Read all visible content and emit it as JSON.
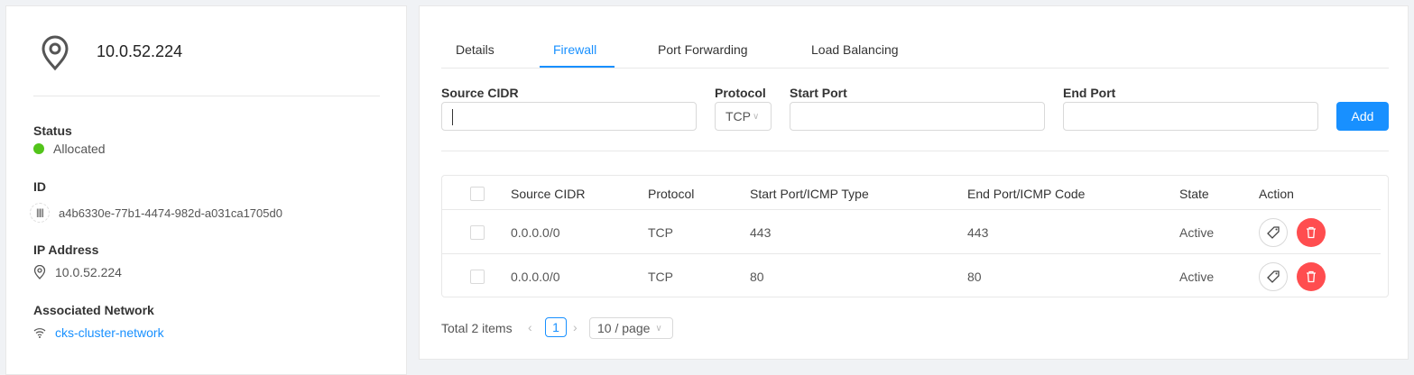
{
  "left": {
    "title": "10.0.52.224",
    "fields": [
      {
        "label": "Status",
        "value": "Allocated"
      },
      {
        "label": "ID",
        "value": "a4b6330e-77b1-4474-982d-a031ca1705d0"
      },
      {
        "label": "IP Address",
        "value": "10.0.52.224"
      },
      {
        "label": "Associated Network",
        "value": "cks-cluster-network"
      }
    ],
    "status_color": "#52c41a",
    "link_color": "#1890ff"
  },
  "tabs": [
    "Details",
    "Firewall",
    "Port Forwarding",
    "Load Balancing"
  ],
  "active_tab": "Firewall",
  "form": {
    "source_cidr_label": "Source CIDR",
    "source_cidr_value": "",
    "protocol_label": "Protocol",
    "protocol_value": "TCP",
    "start_port_label": "Start Port",
    "start_port_value": "",
    "end_port_label": "End Port",
    "end_port_value": "",
    "add_label": "Add"
  },
  "table": {
    "headers": [
      "Source CIDR",
      "Protocol",
      "Start Port/ICMP Type",
      "End Port/ICMP Code",
      "State",
      "Action"
    ],
    "rows": [
      [
        "0.0.0.0/0",
        "TCP",
        "443",
        "443",
        "Active"
      ],
      [
        "0.0.0.0/0",
        "TCP",
        "80",
        "80",
        "Active"
      ]
    ]
  },
  "pagination": {
    "total": "Total 2 items",
    "current": "1",
    "page_size": "10 / page"
  }
}
